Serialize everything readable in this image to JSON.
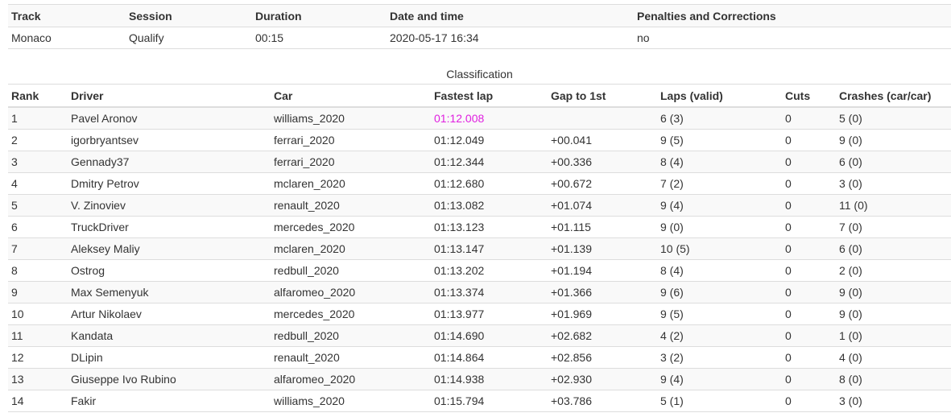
{
  "session": {
    "headers": [
      "Track",
      "Session",
      "Duration",
      "Date and time",
      "Penalties and Corrections"
    ],
    "values": [
      "Monaco",
      "Qualify",
      "00:15",
      "2020-05-17 16:34",
      "no"
    ]
  },
  "classification": {
    "caption": "Classification",
    "headers": [
      "Rank",
      "Driver",
      "Car",
      "Fastest lap",
      "Gap to 1st",
      "Laps (valid)",
      "Cuts",
      "Crashes (car/car)"
    ],
    "rows": [
      [
        "1",
        "Pavel Aronov",
        "williams_2020",
        "01:12.008",
        "",
        "6 (3)",
        "0",
        "5 (0)"
      ],
      [
        "2",
        "igorbryantsev",
        "ferrari_2020",
        "01:12.049",
        "+00.041",
        "9 (5)",
        "0",
        "9 (0)"
      ],
      [
        "3",
        "Gennady37",
        "ferrari_2020",
        "01:12.344",
        "+00.336",
        "8 (4)",
        "0",
        "6 (0)"
      ],
      [
        "4",
        "Dmitry Petrov",
        "mclaren_2020",
        "01:12.680",
        "+00.672",
        "7 (2)",
        "0",
        "3 (0)"
      ],
      [
        "5",
        "V. Zinoviev",
        "renault_2020",
        "01:13.082",
        "+01.074",
        "9 (4)",
        "0",
        "11 (0)"
      ],
      [
        "6",
        "TruckDriver",
        "mercedes_2020",
        "01:13.123",
        "+01.115",
        "9 (0)",
        "0",
        "7 (0)"
      ],
      [
        "7",
        "Aleksey Maliy",
        "mclaren_2020",
        "01:13.147",
        "+01.139",
        "10 (5)",
        "0",
        "6 (0)"
      ],
      [
        "8",
        "Ostrog",
        "redbull_2020",
        "01:13.202",
        "+01.194",
        "8 (4)",
        "0",
        "2 (0)"
      ],
      [
        "9",
        "Max Semenyuk",
        "alfaromeo_2020",
        "01:13.374",
        "+01.366",
        "9 (6)",
        "0",
        "9 (0)"
      ],
      [
        "10",
        "Artur Nikolaev",
        "mercedes_2020",
        "01:13.977",
        "+01.969",
        "9 (5)",
        "0",
        "9 (0)"
      ],
      [
        "11",
        "Kandata",
        "redbull_2020",
        "01:14.690",
        "+02.682",
        "4 (2)",
        "0",
        "1 (0)"
      ],
      [
        "12",
        "DLipin",
        "renault_2020",
        "01:14.864",
        "+02.856",
        "3 (2)",
        "0",
        "4 (0)"
      ],
      [
        "13",
        "Giuseppe Ivo Rubino",
        "alfaromeo_2020",
        "01:14.938",
        "+02.930",
        "9 (4)",
        "0",
        "8 (0)"
      ],
      [
        "14",
        "Fakir",
        "williams_2020",
        "01:15.794",
        "+03.786",
        "5 (1)",
        "0",
        "3 (0)"
      ]
    ],
    "best_lap_color": "#e020e0"
  }
}
